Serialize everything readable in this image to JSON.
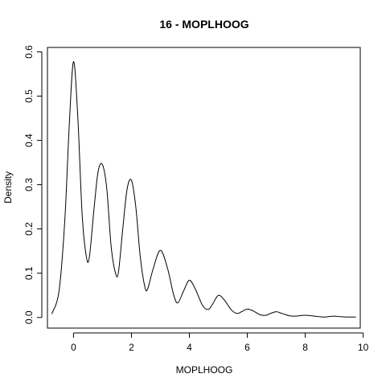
{
  "chart_data": {
    "type": "line",
    "title": "16 - MOPLHOOG",
    "xlabel": "MOPLHOOG",
    "ylabel": "Density",
    "xlim": [
      -0.9,
      9.9
    ],
    "ylim": [
      -0.024,
      0.61
    ],
    "xticks": [
      0,
      2,
      4,
      6,
      8,
      10
    ],
    "xtick_labels": [
      "0",
      "2",
      "4",
      "6",
      "8",
      "10"
    ],
    "yticks": [
      0.0,
      0.1,
      0.2,
      0.3,
      0.4,
      0.5,
      0.6
    ],
    "ytick_labels": [
      "0.0",
      "0.1",
      "0.2",
      "0.3",
      "0.4",
      "0.5",
      "0.6"
    ],
    "grid": false,
    "legend": "none",
    "series": [
      {
        "x": [
          -0.75,
          -0.5,
          -0.3,
          -0.15,
          0.0,
          0.15,
          0.3,
          0.45,
          0.55,
          0.7,
          0.85,
          1.0,
          1.15,
          1.3,
          1.45,
          1.55,
          1.7,
          1.85,
          2.0,
          2.15,
          2.3,
          2.45,
          2.55,
          2.75,
          3.0,
          3.25,
          3.45,
          3.6,
          3.8,
          4.0,
          4.2,
          4.45,
          4.65,
          4.8,
          5.0,
          5.2,
          5.45,
          5.65,
          5.8,
          6.0,
          6.2,
          6.45,
          6.65,
          6.8,
          7.0,
          7.2,
          7.45,
          7.65,
          7.8,
          8.0,
          8.2,
          8.45,
          8.65,
          8.8,
          9.0,
          9.2,
          9.45,
          9.75
        ],
        "y": [
          0.008,
          0.06,
          0.22,
          0.43,
          0.578,
          0.45,
          0.23,
          0.135,
          0.138,
          0.24,
          0.33,
          0.345,
          0.29,
          0.16,
          0.1,
          0.102,
          0.2,
          0.29,
          0.31,
          0.25,
          0.14,
          0.073,
          0.063,
          0.11,
          0.152,
          0.11,
          0.053,
          0.033,
          0.06,
          0.084,
          0.065,
          0.028,
          0.018,
          0.03,
          0.05,
          0.04,
          0.017,
          0.009,
          0.013,
          0.019,
          0.015,
          0.006,
          0.005,
          0.009,
          0.013,
          0.009,
          0.004,
          0.003,
          0.004,
          0.005,
          0.004,
          0.002,
          0.001,
          0.002,
          0.003,
          0.002,
          0.001,
          0.001
        ]
      }
    ]
  }
}
